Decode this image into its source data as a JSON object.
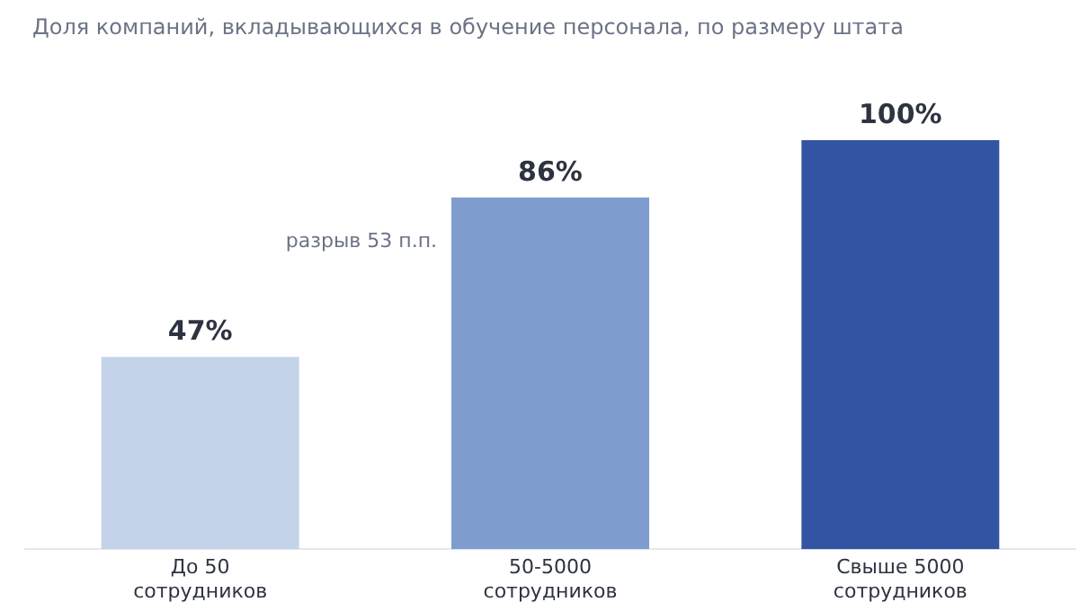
{
  "chart_data": {
    "type": "bar",
    "subtitle": "Доля компаний, вкладывающихся в обучение персонала, по размеру штата",
    "categories": [
      "До 50 сотрудников",
      "50-5000 сотрудников",
      "Свыше 5000 сотрудников"
    ],
    "values": [
      47,
      86,
      100
    ],
    "colors": [
      "#c5d3ea",
      "#7f9ccf",
      "#3354a2"
    ],
    "value_labels": [
      "47%",
      "86%",
      "100%"
    ],
    "ylim": [
      0,
      100
    ],
    "annotations": [
      "разрыв 53 п.п."
    ],
    "grid": false,
    "legend": false
  }
}
